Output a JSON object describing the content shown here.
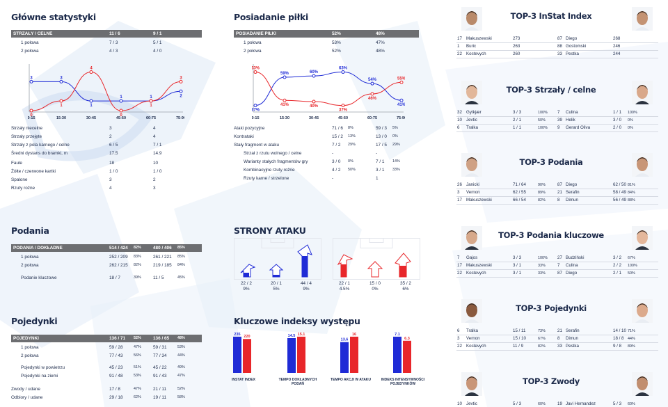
{
  "colors": {
    "blue": "#1f2bd6",
    "red": "#e8262a",
    "navy": "#1c2a4a",
    "header_gray": "#6d6e71",
    "watermark": "#dfeaf6"
  },
  "main_stats": {
    "title": "Główne statystyki",
    "header": {
      "label": "STRZAŁY / CELNE",
      "a": "11 / 6",
      "b": "9 / 1"
    },
    "halves": [
      {
        "label": "1 połowa",
        "a": "7 / 3",
        "b": "5 / 1"
      },
      {
        "label": "2 połowa",
        "a": "4 / 3",
        "b": "4 / 0"
      }
    ],
    "rows": [
      {
        "label": "Strzały niecelne",
        "a": "3",
        "b": "4"
      },
      {
        "label": "Strzały przejęte",
        "a": "2",
        "b": "4"
      },
      {
        "label": "Strzały z pola karnego / celne",
        "a": "6 / 5",
        "b": "7 / 1"
      },
      {
        "label": "Średni dystans do bramki, m",
        "a": "17.5",
        "b": "14.9"
      },
      {
        "label": "Faule",
        "a": "18",
        "b": "10"
      },
      {
        "label": "Żółte / czerwone kartki",
        "a": "1 / 0",
        "b": "1 / 0"
      },
      {
        "label": "Spalone",
        "a": "3",
        "b": "2"
      },
      {
        "label": "Rzuty rożne",
        "a": "4",
        "b": "3"
      }
    ]
  },
  "possession": {
    "title": "Posiadanie piłki",
    "header": {
      "label": "POSIADANIE PIŁKI",
      "a": "52%",
      "b": "48%"
    },
    "halves": [
      {
        "label": "1 połowa",
        "a": "53%",
        "b": "47%"
      },
      {
        "label": "2 połowa",
        "a": "52%",
        "b": "48%"
      }
    ],
    "rows": [
      {
        "label": "Ataki pozycyjne",
        "a": "71 / 6",
        "ap": "8%",
        "b": "59 / 3",
        "bp": "5%"
      },
      {
        "label": "Kontrataki",
        "a": "15 / 2",
        "ap": "13%",
        "b": "13 / 0",
        "bp": "0%"
      },
      {
        "label": "Stały fragment w ataku",
        "a": "7 / 2",
        "ap": "29%",
        "b": "17 / 5",
        "bp": "29%"
      },
      {
        "label": "Strzał z rzutu wolnego / celne",
        "a": "-",
        "ap": "",
        "b": "-",
        "bp": ""
      },
      {
        "label": "Warianty stałych fragmentów gry",
        "a": "3 / 0",
        "ap": "0%",
        "b": "7 / 1",
        "bp": "14%"
      },
      {
        "label": "Kombinacyjne rzuty rożne",
        "a": "4 / 2",
        "ap": "50%",
        "b": "3 / 1",
        "bp": "33%"
      },
      {
        "label": "Rzuty karne / strzelone",
        "a": "-",
        "ap": "",
        "b": "1",
        "bp": ""
      }
    ]
  },
  "passes": {
    "title": "Podania",
    "header": {
      "label": "PODANIA / DOKŁADNE",
      "a": "514 / 424",
      "ap": "82%",
      "b": "480 / 406",
      "bp": "85%"
    },
    "rows": [
      {
        "label": "1 połowa",
        "a": "252 / 209",
        "ap": "83%",
        "b": "261 / 221",
        "bp": "85%"
      },
      {
        "label": "2 połowa",
        "a": "262 / 215",
        "ap": "82%",
        "b": "219 / 185",
        "bp": "84%"
      },
      {
        "label": "Podanie kluczowe",
        "a": "18 / 7",
        "ap": "39%",
        "b": "11 / 5",
        "bp": "45%"
      }
    ]
  },
  "duels": {
    "title": "Pojedynki",
    "header": {
      "label": "POJEDYNKI",
      "a": "136 / 71",
      "ap": "52%",
      "b": "136 / 65",
      "bp": "48%"
    },
    "rows": [
      {
        "label": "1 połowa",
        "a": "59 / 28",
        "ap": "47%",
        "b": "59 / 31",
        "bp": "53%"
      },
      {
        "label": "2 połowa",
        "a": "77 / 43",
        "ap": "56%",
        "b": "77 / 34",
        "bp": "44%"
      },
      {
        "label": "Pojedynki w powietrzu",
        "a": "45 / 23",
        "ap": "51%",
        "b": "45 / 22",
        "bp": "49%"
      },
      {
        "label": "Pojedynki na ziemi",
        "a": "91 / 48",
        "ap": "53%",
        "b": "91 / 43",
        "bp": "47%"
      },
      {
        "label": "Zwody / udane",
        "a": "17 / 8",
        "ap": "47%",
        "b": "21 / 11",
        "bp": "52%"
      },
      {
        "label": "Odbiory / udane",
        "a": "29 / 18",
        "ap": "62%",
        "b": "19 / 11",
        "bp": "58%"
      }
    ]
  },
  "attack_sides": {
    "title": "STRONY ATAKU",
    "team_a": [
      {
        "value": "22 / 2",
        "pct": "9%"
      },
      {
        "value": "20 / 1",
        "pct": "5%"
      },
      {
        "value": "44 / 4",
        "pct": "9%"
      }
    ],
    "team_b": [
      {
        "value": "22 / 1",
        "pct": "4.5%"
      },
      {
        "value": "15 / 0",
        "pct": "0%"
      },
      {
        "value": "35 / 2",
        "pct": "6%"
      }
    ]
  },
  "key_indexes": {
    "title": "Kluczowe indeksy występu",
    "items": [
      {
        "label": "INSTAT INDEX",
        "a": 235,
        "b": 220,
        "a_text": "235",
        "b_text": "220"
      },
      {
        "label": "TEMPO DOKŁADNYCH PODAŃ",
        "a": 14.5,
        "b": 15.1,
        "a_text": "14.5",
        "b_text": "15.1"
      },
      {
        "label": "TEMPO AKCJI W ATAKU",
        "a": 13.6,
        "b": 16,
        "a_text": "13.6",
        "b_text": "16"
      },
      {
        "label": "INDEKS INTENSYWNOŚCI POJEDYNKÓW",
        "a": 7.1,
        "b": 6.3,
        "a_text": "7.1",
        "b_text": "6.3"
      }
    ]
  },
  "chart_data": [
    {
      "type": "line",
      "title": "",
      "categories": [
        "0-15",
        "15-30",
        "30-45",
        "45-60",
        "60-75",
        "75-90"
      ],
      "series": [
        {
          "color": "#1f2bd6",
          "values": [
            3,
            3,
            1,
            1,
            1,
            2
          ]
        },
        {
          "color": "#e8262a",
          "values": [
            0,
            1,
            4,
            0,
            1,
            3
          ]
        }
      ],
      "labels_a": [
        "3",
        "3",
        "1",
        "1",
        "1",
        "2"
      ],
      "labels_b": [
        "0",
        "1",
        "4",
        "0",
        "1",
        "3"
      ]
    },
    {
      "type": "line",
      "title": "",
      "categories": [
        "0-15",
        "15-30",
        "30-45",
        "45-60",
        "60-75",
        "75-90"
      ],
      "series": [
        {
          "color": "#1f2bd6",
          "values": [
            37,
            59,
            60,
            63,
            54,
            41
          ]
        },
        {
          "color": "#e8262a",
          "values": [
            63,
            41,
            40,
            37,
            46,
            55
          ]
        }
      ],
      "labels_a": [
        "37%",
        "59%",
        "60%",
        "63%",
        "54%",
        "41%"
      ],
      "labels_b": [
        "63%",
        "41%",
        "40%",
        "37%",
        "46%",
        "55%"
      ]
    }
  ],
  "top3": [
    {
      "title": "TOP-3 InStat Index",
      "left": [
        {
          "num": "17",
          "name": "Makuszewski",
          "val": "273",
          "pct": ""
        },
        {
          "num": "1",
          "name": "Buric",
          "val": "263",
          "pct": ""
        },
        {
          "num": "22",
          "name": "Kostevych",
          "val": "260",
          "pct": ""
        }
      ],
      "right": [
        {
          "num": "87",
          "name": "Diego",
          "val": "268",
          "pct": ""
        },
        {
          "num": "88",
          "name": "Gostomski",
          "val": "246",
          "pct": ""
        },
        {
          "num": "33",
          "name": "Pestka",
          "val": "244",
          "pct": ""
        }
      ]
    },
    {
      "title": "TOP-3 Strzały / celne",
      "left": [
        {
          "num": "32",
          "name": "Gytkjær",
          "val": "3 / 3",
          "pct": "100%"
        },
        {
          "num": "10",
          "name": "Jevtic",
          "val": "2 / 1",
          "pct": "50%"
        },
        {
          "num": "6",
          "name": "Tralka",
          "val": "1 / 1",
          "pct": "100%"
        }
      ],
      "right": [
        {
          "num": "7",
          "name": "Culina",
          "val": "1 / 1",
          "pct": "100%"
        },
        {
          "num": "39",
          "name": "Helik",
          "val": "3 / 0",
          "pct": "0%"
        },
        {
          "num": "9",
          "name": "Gerard Oliva",
          "val": "2 / 0",
          "pct": "0%"
        }
      ]
    },
    {
      "title": "TOP-3 Podania",
      "left": [
        {
          "num": "26",
          "name": "Janicki",
          "val": "71 / 64",
          "pct": "90%"
        },
        {
          "num": "3",
          "name": "Vernon",
          "val": "62 / 55",
          "pct": "89%"
        },
        {
          "num": "17",
          "name": "Makuszewski",
          "val": "66 / 54",
          "pct": "82%"
        }
      ],
      "right": [
        {
          "num": "87",
          "name": "Diego",
          "val": "62 / 50",
          "pct": "81%"
        },
        {
          "num": "21",
          "name": "Serafin",
          "val": "58 / 49",
          "pct": "84%"
        },
        {
          "num": "8",
          "name": "Dimun",
          "val": "56 / 49",
          "pct": "88%"
        }
      ]
    },
    {
      "title": "TOP-3 Podania kluczowe",
      "left": [
        {
          "num": "7",
          "name": "Gajos",
          "val": "3 / 3",
          "pct": "100%"
        },
        {
          "num": "17",
          "name": "Makuszewski",
          "val": "3 / 1",
          "pct": "33%"
        },
        {
          "num": "22",
          "name": "Kostevych",
          "val": "3 / 1",
          "pct": "33%"
        }
      ],
      "right": [
        {
          "num": "27",
          "name": "Budziński",
          "val": "3 / 2",
          "pct": "67%"
        },
        {
          "num": "7",
          "name": "Culina",
          "val": "2 / 2",
          "pct": "100%"
        },
        {
          "num": "87",
          "name": "Diego",
          "val": "2 / 1",
          "pct": "50%"
        }
      ]
    },
    {
      "title": "TOP-3 Pojedynki",
      "left": [
        {
          "num": "6",
          "name": "Tralka",
          "val": "15 / 11",
          "pct": "73%"
        },
        {
          "num": "3",
          "name": "Vernon",
          "val": "15 / 10",
          "pct": "67%"
        },
        {
          "num": "22",
          "name": "Kostevych",
          "val": "11 / 9",
          "pct": "82%"
        }
      ],
      "right": [
        {
          "num": "21",
          "name": "Serafin",
          "val": "14 / 10",
          "pct": "71%"
        },
        {
          "num": "8",
          "name": "Dimun",
          "val": "18 / 8",
          "pct": "44%"
        },
        {
          "num": "33",
          "name": "Pestka",
          "val": "9 / 8",
          "pct": "89%"
        }
      ]
    },
    {
      "title": "TOP-3 Zwody",
      "left": [
        {
          "num": "10",
          "name": "Jevtic",
          "val": "5 / 3",
          "pct": "60%"
        }
      ],
      "right": [
        {
          "num": "19",
          "name": "Javi Hernandez",
          "val": "5 / 3",
          "pct": "60%"
        }
      ]
    }
  ]
}
